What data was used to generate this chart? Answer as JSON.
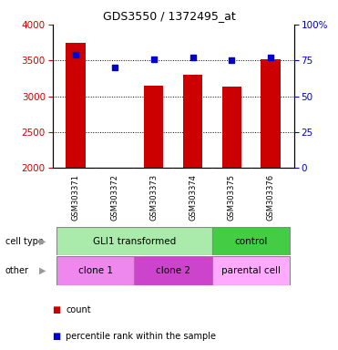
{
  "title": "GDS3550 / 1372495_at",
  "samples": [
    "GSM303371",
    "GSM303372",
    "GSM303373",
    "GSM303374",
    "GSM303375",
    "GSM303376"
  ],
  "counts": [
    3740,
    2010,
    3150,
    3300,
    3130,
    3520
  ],
  "percentile_ranks": [
    79,
    70,
    76,
    77,
    75,
    77
  ],
  "ylim_left": [
    2000,
    4000
  ],
  "ylim_right": [
    0,
    100
  ],
  "yticks_left": [
    2000,
    2500,
    3000,
    3500,
    4000
  ],
  "yticks_right": [
    0,
    25,
    50,
    75,
    100
  ],
  "bar_color": "#cc0000",
  "dot_color": "#0000cc",
  "bar_width": 0.5,
  "cell_type_groups": [
    {
      "label": "GLI1 transformed",
      "cols": [
        0,
        1,
        2,
        3
      ],
      "color": "#aaeaaa"
    },
    {
      "label": "control",
      "cols": [
        4,
        5
      ],
      "color": "#44cc44"
    }
  ],
  "other_groups": [
    {
      "label": "clone 1",
      "cols": [
        0,
        1
      ],
      "color": "#ee88ee"
    },
    {
      "label": "clone 2",
      "cols": [
        2,
        3
      ],
      "color": "#cc44cc"
    },
    {
      "label": "parental cell",
      "cols": [
        4,
        5
      ],
      "color": "#ffaaff"
    }
  ],
  "legend_count_label": "count",
  "legend_percentile_label": "percentile rank within the sample",
  "cell_type_row_label": "cell type",
  "other_row_label": "other",
  "background_color": "#ffffff",
  "plot_bg_color": "#ffffff",
  "tick_label_color_left": "#cc0000",
  "tick_label_color_right": "#0000cc",
  "grid_color": "#000000",
  "sample_bg_color": "#cccccc",
  "sample_border_color": "#aaaaaa"
}
